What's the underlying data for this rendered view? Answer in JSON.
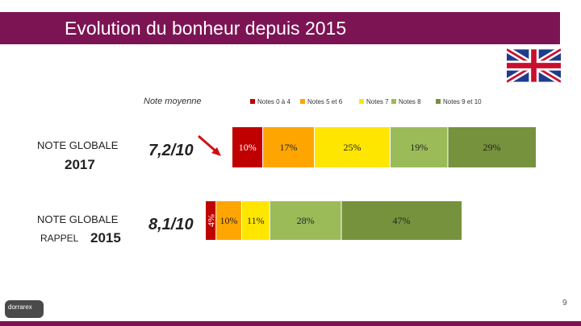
{
  "header": {
    "title": "Evolution du bonheur depuis 2015"
  },
  "labels": {
    "average": "Note moyenne",
    "row1_line1": "NOTE GLOBALE",
    "row1_line2": "2017",
    "row2_line1": "NOTE GLOBALE",
    "row2_line2a": "RAPPEL",
    "row2_line2b": "2015"
  },
  "scores": {
    "row1": "7,2/10",
    "row2": "8,1/10"
  },
  "footer": {
    "page_number": "9",
    "logo_text": "dorrarex"
  },
  "chart_data": {
    "type": "stacked-bar-horizontal",
    "title": "",
    "legend": [
      {
        "name": "Notes 0 à 4",
        "color": "#c00000"
      },
      {
        "name": "Notes 5 et 6",
        "color": "#ffa500"
      },
      {
        "name": "Notes 7",
        "color": "#ffe600"
      },
      {
        "name": "Notes 8",
        "color": "#9bbb59"
      },
      {
        "name": "Notes 9 et 10",
        "color": "#76923c"
      }
    ],
    "categories": [
      "2017",
      "2015"
    ],
    "series": [
      {
        "name": "Notes 0 à 4",
        "values": [
          10,
          4
        ],
        "labels": [
          "10%",
          "4%"
        ]
      },
      {
        "name": "Notes 5 et 6",
        "values": [
          17,
          10
        ],
        "labels": [
          "17%",
          "10%"
        ]
      },
      {
        "name": "Notes 7",
        "values": [
          25,
          11
        ],
        "labels": [
          "25%",
          "11%"
        ]
      },
      {
        "name": "Notes 8",
        "values": [
          19,
          28
        ],
        "labels": [
          "19%",
          "28%"
        ]
      },
      {
        "name": "Notes 9 et 10",
        "values": [
          29,
          47
        ],
        "labels": [
          "29%",
          "47%"
        ]
      }
    ]
  }
}
